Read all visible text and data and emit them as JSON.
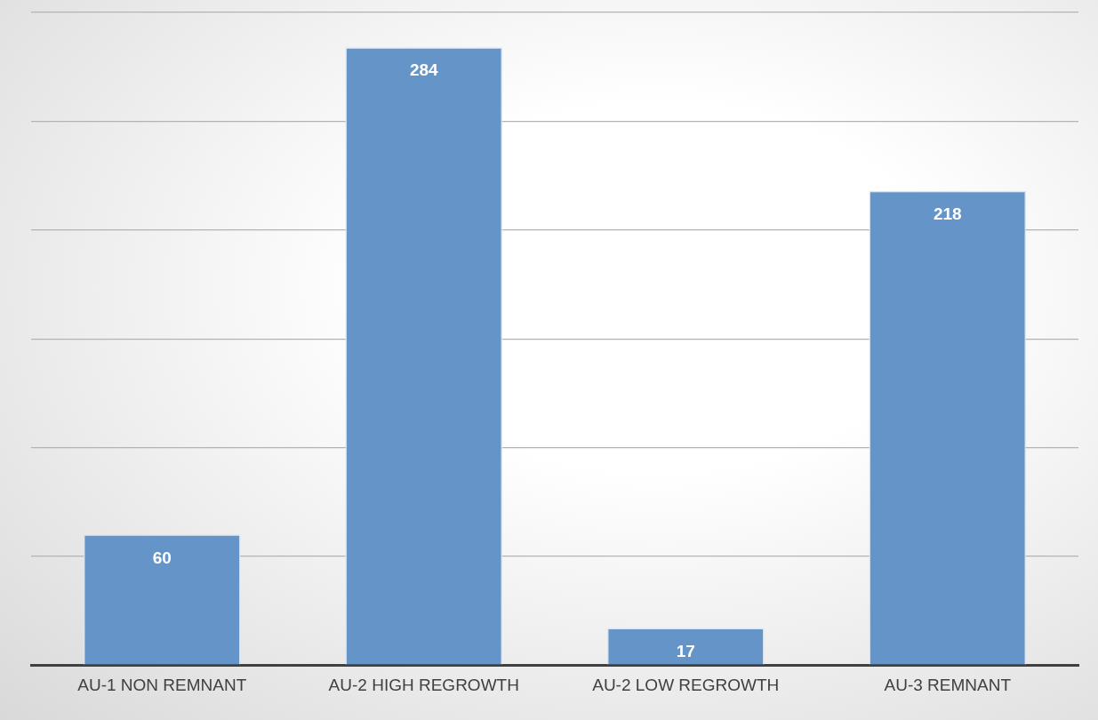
{
  "chart_data": {
    "type": "bar",
    "categories": [
      "AU-1 NON REMNANT",
      "AU-2 HIGH REGROWTH",
      "AU-2 LOW REGROWTH",
      "AU-3 REMNANT"
    ],
    "values": [
      60,
      284,
      17,
      218
    ],
    "color": "#6594c9",
    "ylim": [
      0,
      300
    ],
    "yticks": [
      {
        "value": 0,
        "label": null
      },
      {
        "value": 50,
        "label": null
      },
      {
        "value": 100,
        "label": null
      },
      {
        "value": 150,
        "label": null
      },
      {
        "value": 200,
        "label": null
      },
      {
        "value": 250,
        "label": null
      },
      {
        "value": 300,
        "label": null
      }
    ],
    "grid": "y",
    "tick_labels": "x",
    "data_labels": true,
    "legend": false
  }
}
